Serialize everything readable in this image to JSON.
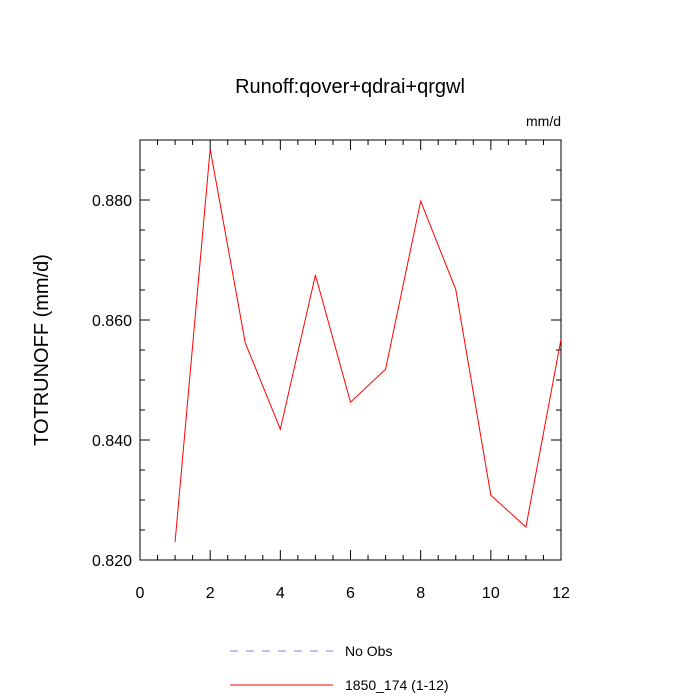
{
  "chart_data": {
    "type": "line",
    "title": "Runoff:qover+qdrai+qrgwl",
    "units_label": "mm/d",
    "xlabel": "",
    "ylabel": "TOTRUNOFF  (mm/d)",
    "xlim": [
      0,
      12
    ],
    "ylim": [
      0.82,
      0.89
    ],
    "xticks": [
      0,
      2,
      4,
      6,
      8,
      10,
      12
    ],
    "xtick_labels": [
      "0",
      "2",
      "4",
      "6",
      "8",
      "10",
      "12"
    ],
    "yticks": [
      0.82,
      0.84,
      0.86,
      0.88
    ],
    "ytick_labels": [
      "0.820",
      "0.840",
      "0.860",
      "0.880"
    ],
    "grid": false,
    "legend_position": "bottom",
    "series": [
      {
        "name": "No Obs",
        "color": "#8080ff",
        "dashed": true,
        "x": [],
        "y": []
      },
      {
        "name": "1850_174 (1-12)",
        "color": "#ff0000",
        "dashed": false,
        "x": [
          1,
          2,
          3,
          4,
          5,
          6,
          7,
          8,
          9,
          10,
          11,
          12
        ],
        "y": [
          0.823,
          0.8885,
          0.8562,
          0.8418,
          0.8675,
          0.8463,
          0.8518,
          0.8798,
          0.8651,
          0.8308,
          0.8255,
          0.8568
        ]
      }
    ]
  }
}
